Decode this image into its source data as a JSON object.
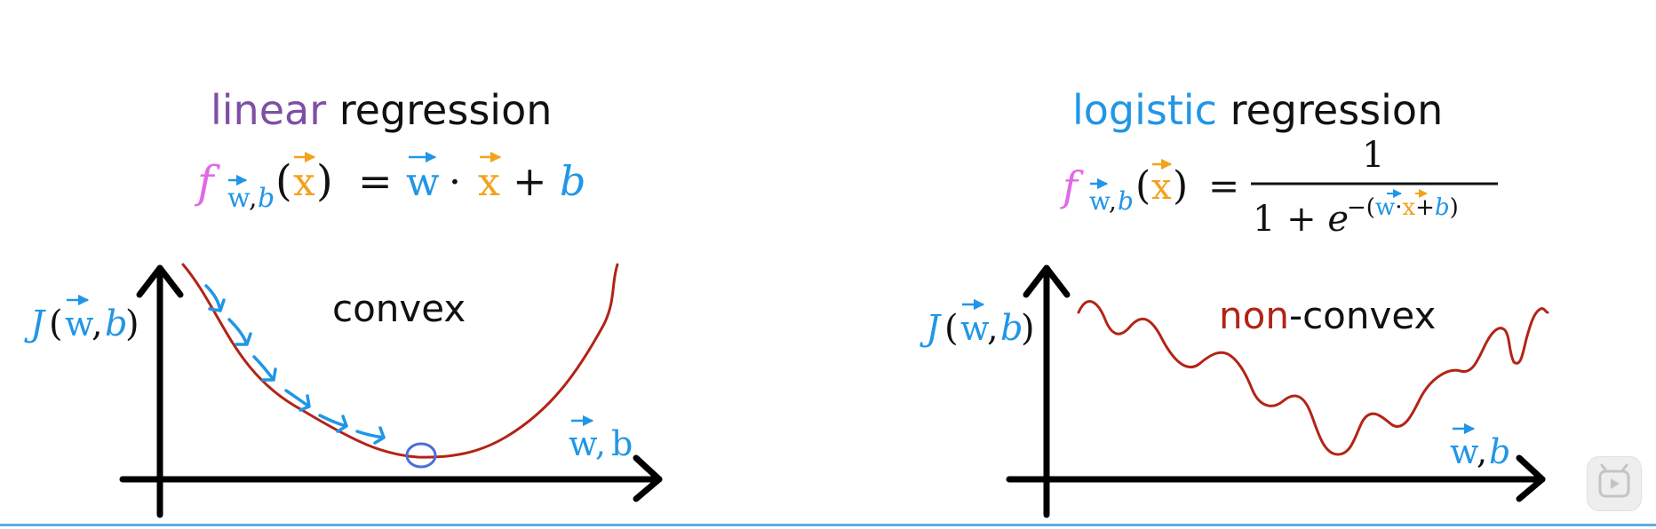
{
  "left": {
    "title_colored": "linear",
    "title_rest": " regression",
    "formula": {
      "f": "f",
      "sub_w": "w",
      "sub_comma": ",",
      "sub_b": "b",
      "open": "(",
      "x": "x",
      "close": ")",
      "eq": "=",
      "w": "w",
      "dot": "·",
      "x2": "x",
      "plus": "+",
      "b": "b"
    },
    "yaxis": {
      "J": "J",
      "open": "(",
      "w": "w",
      "comma": ",",
      "b": "b",
      "close": ")"
    },
    "xaxis": {
      "w": "w",
      "comma": ",",
      "b": "b"
    },
    "curve_label": "convex"
  },
  "right": {
    "title_colored": "logistic",
    "title_rest": " regression",
    "formula": {
      "f": "f",
      "sub_w": "w",
      "sub_comma": ",",
      "sub_b": "b",
      "open": "(",
      "x": "x",
      "close": ")",
      "eq": "=",
      "numerator": "1",
      "den_one_plus": "1 + ",
      "den_e": "e",
      "exp_minus": "−(",
      "exp_w": "w",
      "exp_dot": "·",
      "exp_x": "x",
      "exp_plus": "+",
      "exp_b": "b",
      "exp_close": ")"
    },
    "yaxis": {
      "J": "J",
      "open": "(",
      "w": "w",
      "comma": ",",
      "b": "b",
      "close": ")"
    },
    "xaxis": {
      "w": "w",
      "comma": ",",
      "b": "b"
    },
    "label_colored": "non",
    "label_rest": "-convex"
  },
  "colors": {
    "purple": "#7e4fa6",
    "blue": "#2196e6",
    "orange": "#f3a21d",
    "magenta": "#e06ae6",
    "red": "#b22416",
    "black": "#111111",
    "circle": "#4a6fd6"
  },
  "icons": {
    "player": "play-icon"
  }
}
